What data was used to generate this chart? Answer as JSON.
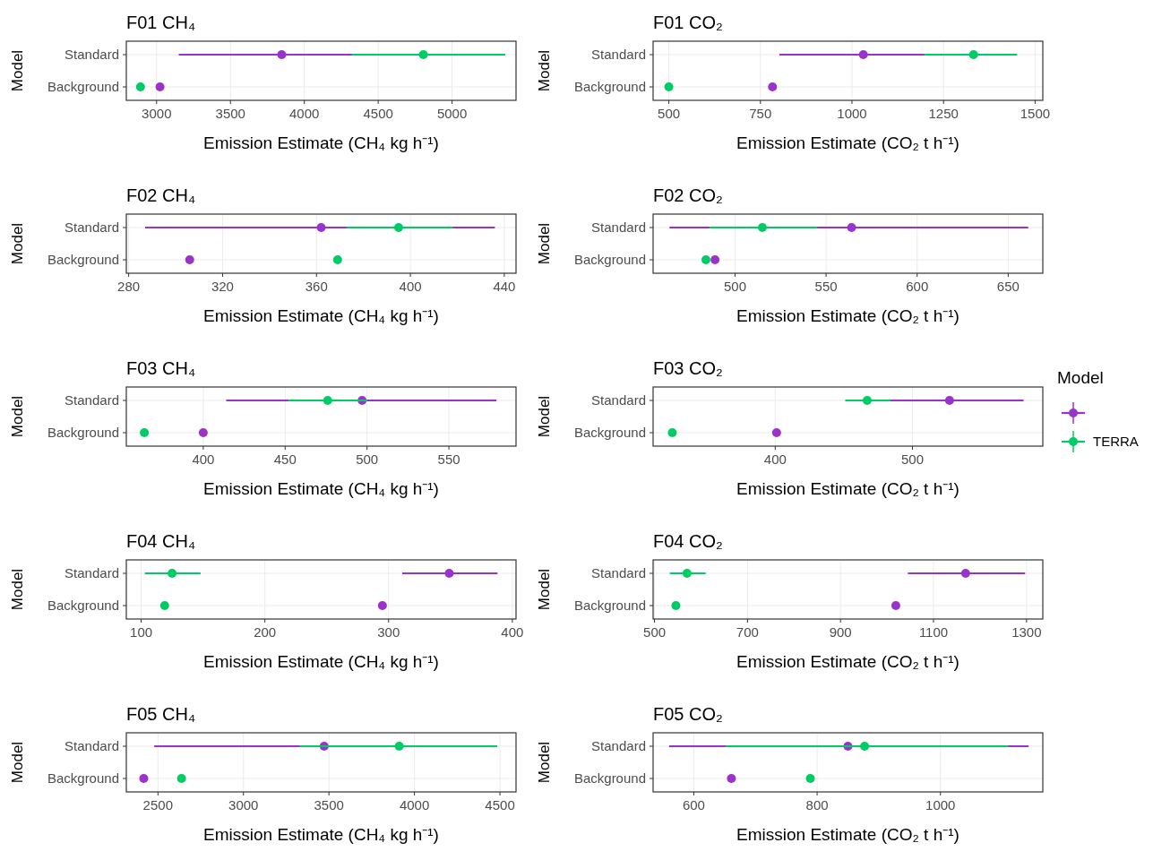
{
  "chart_data": [
    {
      "type": "scatter",
      "orientation": "horizontal",
      "title": "F01 CH₄",
      "xlabel": "Emission Estimate (CH₄ kg h⁻¹)",
      "ylabel": "Model",
      "categories": [
        "Standard",
        "Background"
      ],
      "xlim": [
        2795,
        5433
      ],
      "xticks": [
        3000,
        3500,
        4000,
        4500,
        5000
      ],
      "grid": true,
      "marker": "circle",
      "series": [
        {
          "color": "#9933cc",
          "values": [
            3847,
            3023
          ],
          "errors": [
            [
              3150,
              4323
            ],
            null
          ]
        },
        {
          "color": "#00cc66",
          "values": [
            4806,
            2891
          ],
          "errors": [
            [
              4323,
              5360
            ],
            null
          ]
        }
      ]
    },
    {
      "type": "scatter",
      "orientation": "horizontal",
      "title": "F01 CO₂",
      "xlabel": "Emission Estimate (CO₂ t h⁻¹)",
      "ylabel": "Model",
      "categories": [
        "Standard",
        "Background"
      ],
      "xlim": [
        457,
        1521
      ],
      "xticks": [
        500,
        750,
        1000,
        1250,
        1500
      ],
      "grid": true,
      "marker": "circle",
      "series": [
        {
          "color": "#9933cc",
          "values": [
            1031,
            783
          ],
          "errors": [
            [
              802,
              1198
            ],
            null
          ]
        },
        {
          "color": "#00cc66",
          "values": [
            1332,
            500
          ],
          "errors": [
            [
              1198,
              1451
            ],
            null
          ]
        }
      ]
    },
    {
      "type": "scatter",
      "orientation": "horizontal",
      "title": "F02 CH₄",
      "xlabel": "Emission Estimate (CH₄ kg h⁻¹)",
      "ylabel": "Model",
      "categories": [
        "Standard",
        "Background"
      ],
      "xlim": [
        279,
        445
      ],
      "xticks": [
        280,
        320,
        360,
        400,
        440
      ],
      "grid": true,
      "marker": "circle",
      "series": [
        {
          "color": "#9933cc",
          "values": [
            362,
            306
          ],
          "errors": [
            [
              287,
              436
            ],
            null
          ]
        },
        {
          "color": "#00cc66",
          "values": [
            395,
            369
          ],
          "errors": [
            [
              373,
              418
            ],
            null
          ]
        }
      ]
    },
    {
      "type": "scatter",
      "orientation": "horizontal",
      "title": "F02 CO₂",
      "xlabel": "Emission Estimate (CO₂ t h⁻¹)",
      "ylabel": "Model",
      "categories": [
        "Standard",
        "Background"
      ],
      "xlim": [
        455,
        669
      ],
      "xticks": [
        500,
        550,
        600,
        650
      ],
      "grid": true,
      "marker": "circle",
      "series": [
        {
          "color": "#9933cc",
          "values": [
            564,
            489
          ],
          "errors": [
            [
              464,
              661
            ],
            null
          ]
        },
        {
          "color": "#00cc66",
          "values": [
            515,
            484
          ],
          "errors": [
            [
              486,
              545
            ],
            null
          ]
        }
      ]
    },
    {
      "type": "scatter",
      "orientation": "horizontal",
      "title": "F03 CH₄",
      "xlabel": "Emission Estimate (CH₄ kg h⁻¹)",
      "ylabel": "Model",
      "categories": [
        "Standard",
        "Background"
      ],
      "xlim": [
        353,
        591
      ],
      "xticks": [
        400,
        450,
        500,
        550
      ],
      "grid": true,
      "marker": "circle",
      "series": [
        {
          "color": "#9933cc",
          "values": [
            497,
            400
          ],
          "errors": [
            [
              414,
              579
            ],
            null
          ]
        },
        {
          "color": "#00cc66",
          "values": [
            476,
            364
          ],
          "errors": [
            [
              452,
              500
            ],
            null
          ]
        }
      ]
    },
    {
      "type": "scatter",
      "orientation": "horizontal",
      "title": "F03 CO₂",
      "xlabel": "Emission Estimate (CO₂ t h⁻¹)",
      "ylabel": "Model",
      "categories": [
        "Standard",
        "Background"
      ],
      "xlim": [
        311,
        595
      ],
      "xticks": [
        400,
        500
      ],
      "grid": true,
      "marker": "circle",
      "legend": "right",
      "legend_title": "Model",
      "series": [
        {
          "color": "#9933cc",
          "values": [
            527,
            401
          ],
          "errors": [
            [
              484,
              581
            ],
            null
          ]
        },
        {
          "name": "TERRA",
          "color": "#00cc66",
          "values": [
            467,
            325
          ],
          "errors": [
            [
              451,
              484
            ],
            null
          ]
        }
      ]
    },
    {
      "type": "scatter",
      "orientation": "horizontal",
      "title": "F04 CH₄",
      "xlabel": "Emission Estimate (CH₄ kg h⁻¹)",
      "ylabel": "Model",
      "categories": [
        "Standard",
        "Background"
      ],
      "xlim": [
        88,
        403
      ],
      "xticks": [
        100,
        200,
        300,
        400
      ],
      "grid": true,
      "marker": "circle",
      "series": [
        {
          "color": "#9933cc",
          "values": [
            349,
            295
          ],
          "errors": [
            [
              311,
              388
            ],
            null
          ]
        },
        {
          "color": "#00cc66",
          "values": [
            125,
            119
          ],
          "errors": [
            [
              103,
              148
            ],
            null
          ]
        }
      ]
    },
    {
      "type": "scatter",
      "orientation": "horizontal",
      "title": "F04 CO₂",
      "xlabel": "Emission Estimate (CO₂ t h⁻¹)",
      "ylabel": "Model",
      "categories": [
        "Standard",
        "Background"
      ],
      "xlim": [
        497,
        1335
      ],
      "xticks": [
        500,
        700,
        900,
        1100,
        1300
      ],
      "grid": true,
      "marker": "circle",
      "series": [
        {
          "color": "#9933cc",
          "values": [
            1169,
            1019
          ],
          "errors": [
            [
              1045,
              1297
            ],
            null
          ]
        },
        {
          "color": "#00cc66",
          "values": [
            570,
            546
          ],
          "errors": [
            [
              533,
              610
            ],
            null
          ]
        }
      ]
    },
    {
      "type": "scatter",
      "orientation": "horizontal",
      "title": "F05 CH₄",
      "xlabel": "Emission Estimate (CH₄ kg h⁻¹)",
      "ylabel": "Model",
      "categories": [
        "Standard",
        "Background"
      ],
      "xlim": [
        2315,
        4594
      ],
      "xticks": [
        2500,
        3000,
        3500,
        4000,
        4500
      ],
      "grid": true,
      "marker": "circle",
      "series": [
        {
          "color": "#9933cc",
          "values": [
            3472,
            2417
          ],
          "errors": [
            [
              2478,
              3331
            ],
            null
          ]
        },
        {
          "color": "#00cc66",
          "values": [
            3911,
            2638
          ],
          "errors": [
            [
              3331,
              4484
            ],
            null
          ]
        }
      ]
    },
    {
      "type": "scatter",
      "orientation": "horizontal",
      "title": "F05 CO₂",
      "xlabel": "Emission Estimate (CO₂ t h⁻¹)",
      "ylabel": "Model",
      "categories": [
        "Standard",
        "Background"
      ],
      "xlim": [
        534,
        1166
      ],
      "xticks": [
        600,
        800,
        1000
      ],
      "grid": true,
      "marker": "circle",
      "series": [
        {
          "color": "#9933cc",
          "values": [
            850,
            661
          ],
          "errors": [
            [
              560,
              1143
            ],
            null
          ]
        },
        {
          "color": "#00cc66",
          "values": [
            877,
            789
          ],
          "errors": [
            [
              652,
              1110
            ],
            null
          ]
        }
      ]
    }
  ]
}
